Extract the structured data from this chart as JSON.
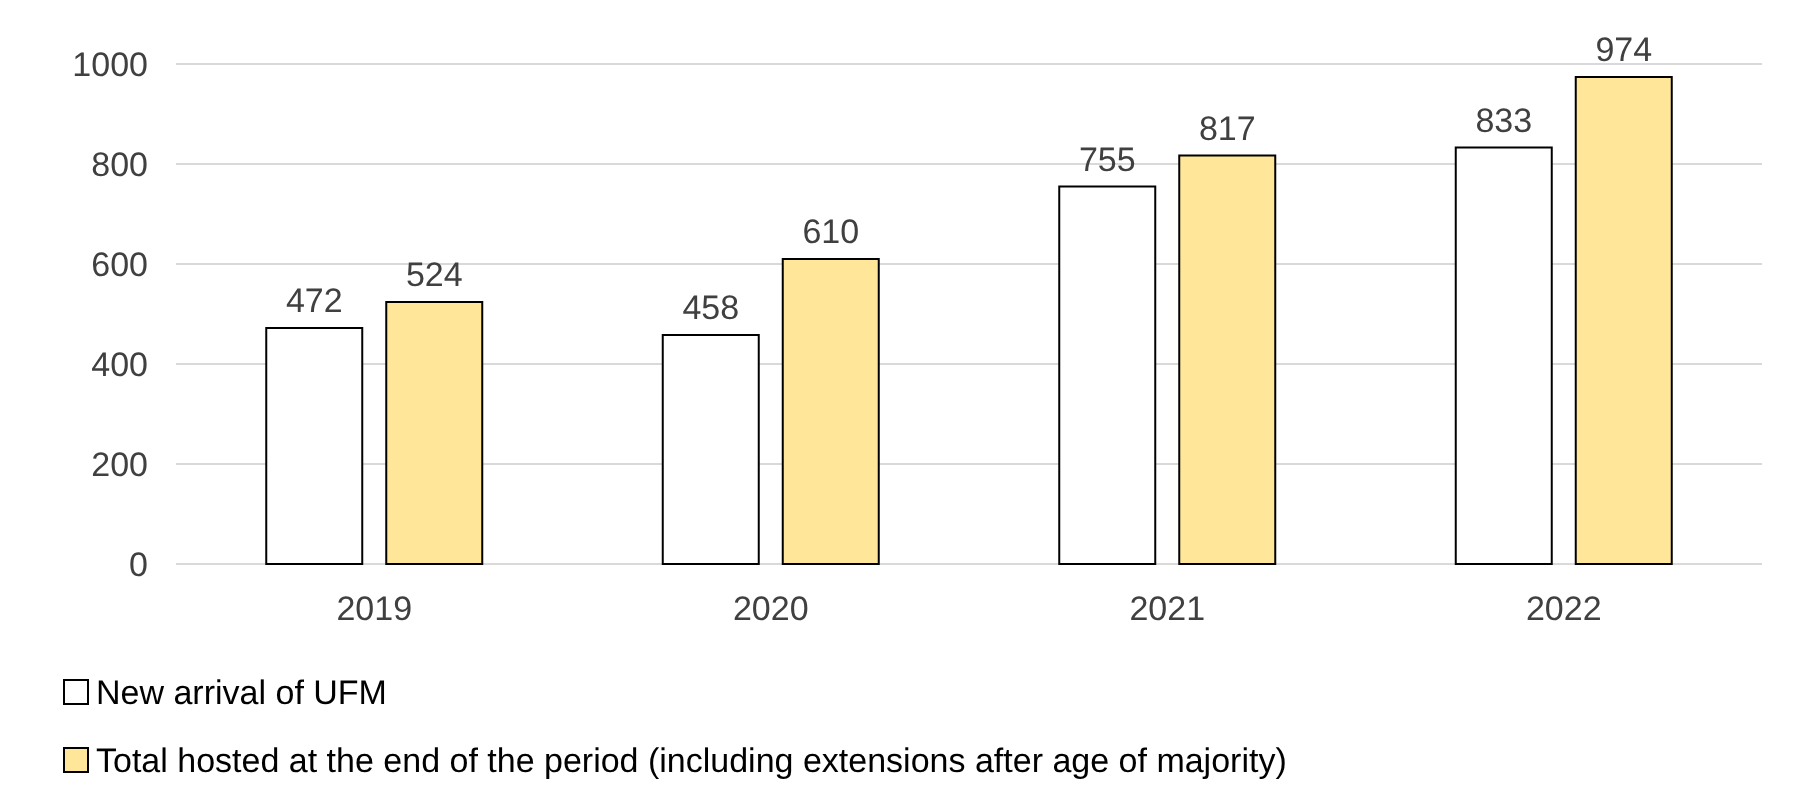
{
  "chart_data": {
    "type": "bar",
    "categories": [
      "2019",
      "2020",
      "2021",
      "2022"
    ],
    "series": [
      {
        "name": "New arrival of UFM",
        "color": "#ffffff",
        "values": [
          472,
          458,
          755,
          833
        ]
      },
      {
        "name": "Total hosted at the end of the period (including extensions after age of majority)",
        "color": "#ffe699",
        "values": [
          524,
          610,
          817,
          974
        ]
      }
    ],
    "ylim": [
      0,
      1000
    ],
    "yticks": [
      0,
      200,
      400,
      600,
      800,
      1000
    ],
    "grid": "y",
    "legend": "bottom",
    "data_labels": true
  }
}
